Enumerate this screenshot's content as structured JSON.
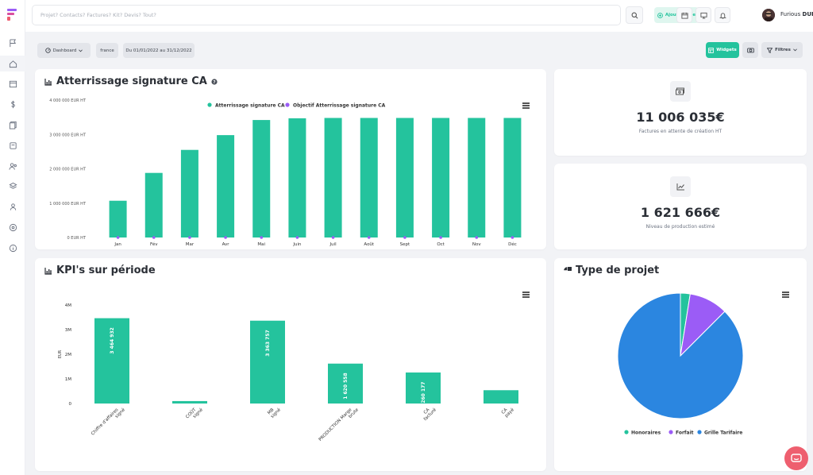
{
  "header": {
    "search_placeholder": "Projet? Contacts? Factures? Kit? Devis? Tout?",
    "add_label": "Ajout rapide",
    "user_first": "Furious",
    "user_last": "DURAND"
  },
  "toolbar": {
    "dashboard_label": "Dashboard",
    "region_label": "france",
    "period_label": "Du 01/01/2022 au 31/12/2022",
    "widgets_label": "Widgets",
    "filters_label": "Filtres"
  },
  "cards": {
    "atterrissage_title": "Atterrissage signature CA",
    "kpi1_value": "11 006 035€",
    "kpi1_label": "Factures en attente de création HT",
    "kpi2_value": "1 621 666€",
    "kpi2_label": "Niveau de production estimé",
    "kpi_title": "KPI's sur période",
    "projet_title": "Type de projet"
  },
  "colors": {
    "accent": "#24c39d",
    "purple": "#9b5cf6",
    "blue": "#2b86e0"
  },
  "chart_data": [
    {
      "type": "bar",
      "categories": [
        "Jan",
        "Fév",
        "Mar",
        "Avr",
        "Mai",
        "Juin",
        "Juil",
        "Août",
        "Sept",
        "Oct",
        "Nov",
        "Déc"
      ],
      "series": [
        {
          "name": "Atterrissage signature CA",
          "values": [
            1070000,
            1880000,
            2550000,
            2980000,
            3420000,
            3470000,
            3480000,
            3480000,
            3480000,
            3480000,
            3480000,
            3480000
          ]
        },
        {
          "name": "Objectif Atterrissage signature CA",
          "values": [
            0,
            0,
            0,
            0,
            0,
            0,
            0,
            0,
            0,
            0,
            0,
            0
          ]
        }
      ],
      "yticks": [
        "4 000 000 EUR HT",
        "3 000 000 EUR HT",
        "2 000 000 EUR HT",
        "1 000 000 EUR HT",
        "0 EUR HT"
      ],
      "ylim": [
        0,
        4000000
      ],
      "legend": "top"
    },
    {
      "type": "bar",
      "categories": [
        "Chiffre d'affaires signé",
        "COÛT signé",
        "MB signé",
        "PRODUCTION Marge brute",
        "CA facturé",
        "CA payé"
      ],
      "values": [
        3464932,
        99000,
        3363757,
        1620558,
        1260177,
        540000
      ],
      "data_labels": [
        "3 464 932",
        "",
        "3 363 757",
        "1 620 558",
        "1 260 177",
        ""
      ],
      "yticks": [
        "4M",
        "3M",
        "2M",
        "1M",
        "0"
      ],
      "ylabel": "EUR",
      "ylim": [
        0,
        4000000
      ]
    },
    {
      "type": "pie",
      "labels": [
        "Honoraires",
        "Forfait",
        "Grille Tarifaire"
      ],
      "values": [
        2.5,
        10,
        87.5
      ],
      "colors": [
        "#24c39d",
        "#9b5cf6",
        "#2b86e0"
      ],
      "legend": "bottom"
    }
  ]
}
